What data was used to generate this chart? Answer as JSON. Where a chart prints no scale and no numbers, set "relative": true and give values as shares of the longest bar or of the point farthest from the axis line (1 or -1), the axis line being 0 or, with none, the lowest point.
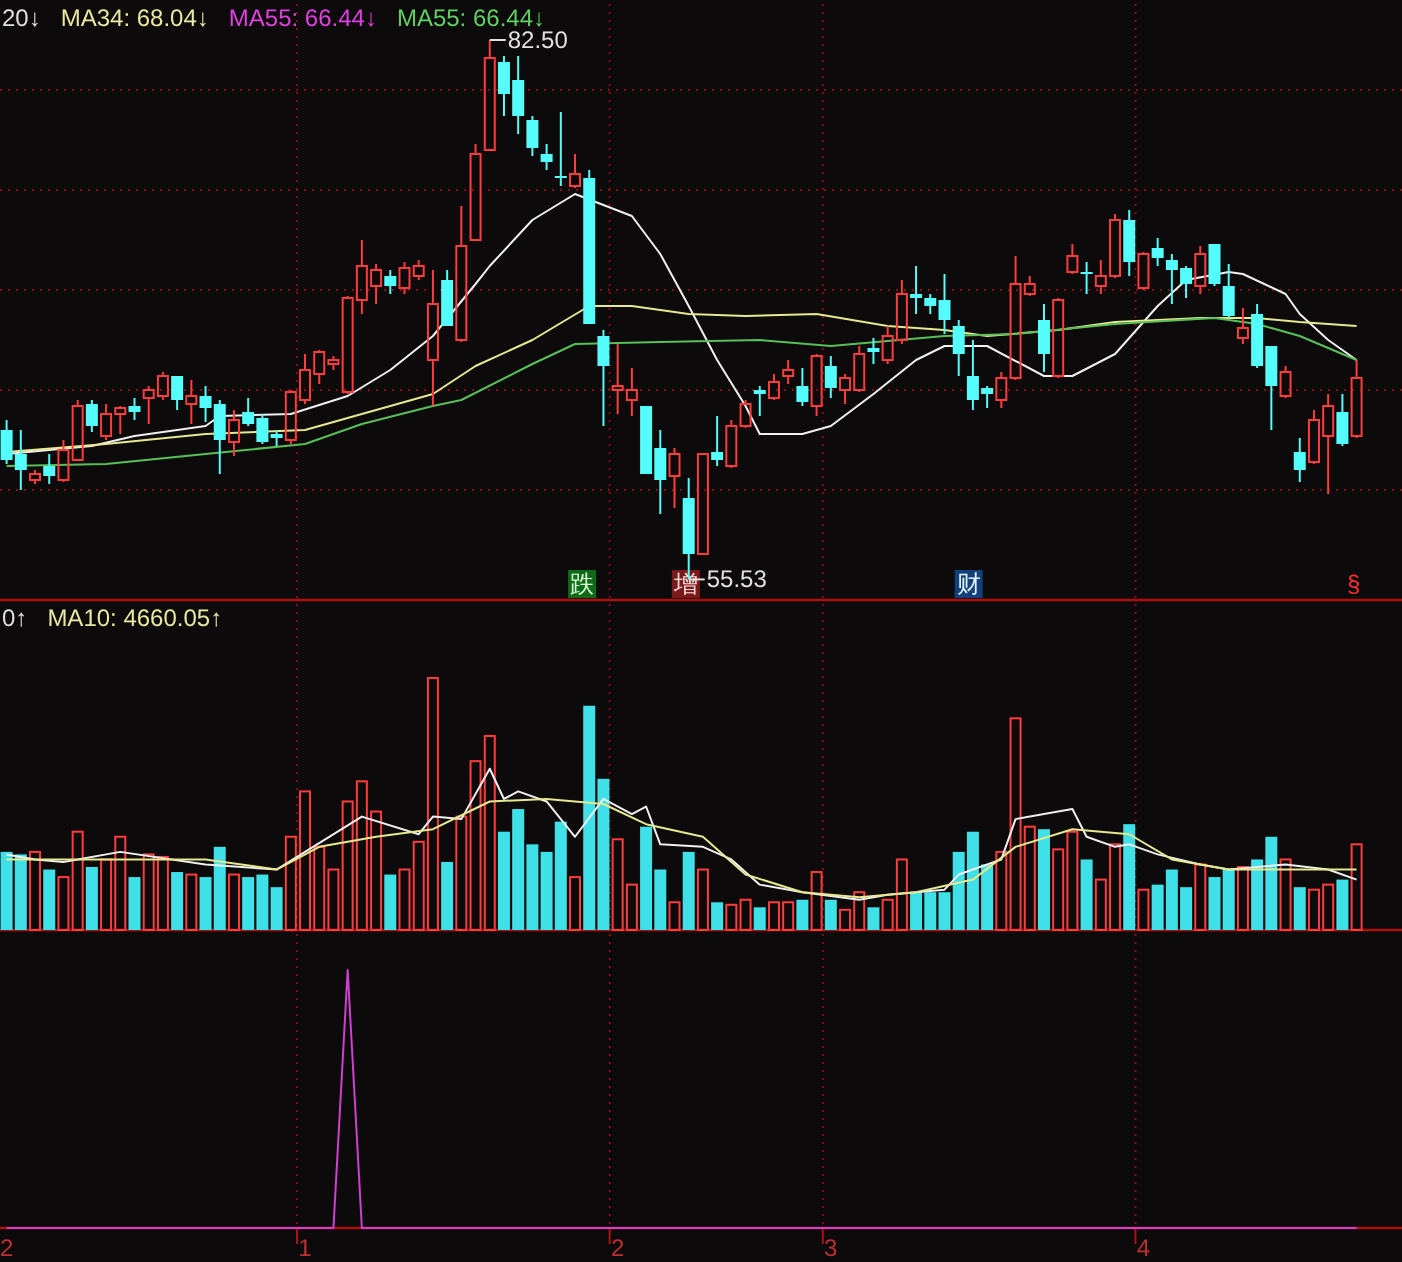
{
  "chart_data": [
    {
      "type": "candlestick",
      "tick_labels": false,
      "grid": true,
      "ylim": [
        54.5,
        84.5
      ],
      "categories": [
        "2",
        null,
        null,
        null,
        null,
        null,
        null,
        null,
        null,
        null,
        null,
        null,
        null,
        null,
        null,
        null,
        null,
        null,
        null,
        null,
        null,
        "1",
        null,
        null,
        null,
        null,
        null,
        null,
        null,
        null,
        null,
        null,
        null,
        null,
        null,
        null,
        null,
        null,
        null,
        null,
        null,
        null,
        null,
        "2",
        null,
        null,
        null,
        null,
        null,
        null,
        null,
        null,
        null,
        null,
        null,
        null,
        null,
        null,
        "3",
        null,
        null,
        null,
        null,
        null,
        null,
        null,
        null,
        null,
        null,
        null,
        null,
        null,
        null,
        null,
        null,
        null,
        null,
        null,
        null,
        null,
        "4",
        null,
        null,
        null,
        null,
        null,
        null,
        null,
        null,
        null,
        null,
        null,
        null,
        null,
        null,
        null
      ],
      "yticks": [
        {
          "value": 60,
          "label": null
        },
        {
          "value": 65,
          "label": null
        },
        {
          "value": 70,
          "label": null
        },
        {
          "value": 75,
          "label": null
        },
        {
          "value": 80,
          "label": null
        }
      ],
      "annotations": [
        "20↓",
        "MA34: 68.04↓",
        "MA55: 66.44↓",
        "MA55: 66.44↓",
        "82.50",
        "55.53",
        "跌",
        "增",
        "财",
        "§"
      ],
      "series": [
        {
          "colors": [
            "#54fcfc",
            "#54fcfc",
            "#ff3c3c",
            "#54fcfc",
            "#ff3c3c",
            "#ff3c3c",
            "#54fcfc",
            "#ff3c3c",
            "#ff3c3c",
            "#54fcfc",
            "#ff3c3c",
            "#ff3c3c",
            "#54fcfc",
            "#ff3c3c",
            "#54fcfc",
            "#54fcfc",
            "#ff3c3c",
            "#54fcfc",
            "#54fcfc",
            "#54fcfc",
            "#ff3c3c",
            "#ff3c3c",
            "#ff3c3c",
            "#ff3c3c",
            "#ff3c3c",
            "#ff3c3c",
            "#ff3c3c",
            "#54fcfc",
            "#ff3c3c",
            "#ff3c3c",
            "#ff3c3c",
            "#54fcfc",
            "#ff3c3c",
            "#ff3c3c",
            "#ff3c3c",
            "#54fcfc",
            "#54fcfc",
            "#54fcfc",
            "#54fcfc",
            "#54fcfc",
            "#ff3c3c",
            "#54fcfc",
            "#54fcfc",
            "#ff3c3c",
            "#ff3c3c",
            "#54fcfc",
            "#54fcfc",
            "#ff3c3c",
            "#54fcfc",
            "#ff3c3c",
            "#54fcfc",
            "#ff3c3c",
            "#ff3c3c",
            "#54fcfc",
            "#ff3c3c",
            "#ff3c3c",
            "#54fcfc",
            "#ff3c3c",
            "#54fcfc",
            "#ff3c3c",
            "#ff3c3c",
            "#54fcfc",
            "#ff3c3c",
            "#ff3c3c",
            "#54fcfc",
            "#54fcfc",
            "#54fcfc",
            "#54fcfc",
            "#54fcfc",
            "#54fcfc",
            "#ff3c3c",
            "#ff3c3c",
            "#ff3c3c",
            "#54fcfc",
            "#ff3c3c",
            "#ff3c3c",
            "#54fcfc",
            "#ff3c3c",
            "#ff3c3c",
            "#54fcfc",
            "#ff3c3c",
            "#54fcfc",
            "#54fcfc",
            "#54fcfc",
            "#ff3c3c",
            "#54fcfc",
            "#54fcfc",
            "#ff3c3c",
            "#54fcfc",
            "#54fcfc",
            "#ff3c3c",
            "#54fcfc",
            "#ff3c3c",
            "#ff3c3c",
            "#54fcfc",
            "#ff3c3c"
          ],
          "ohlc": [
            [
              63.0,
              63.5,
              61.3,
              61.5
            ],
            [
              61.8,
              63.0,
              60.0,
              61.0
            ],
            [
              60.5,
              61.0,
              60.3,
              60.8
            ],
            [
              61.2,
              61.8,
              60.3,
              60.7
            ],
            [
              60.5,
              62.5,
              60.4,
              62.0
            ],
            [
              61.5,
              64.5,
              61.5,
              64.2
            ],
            [
              64.3,
              64.5,
              62.9,
              63.2
            ],
            [
              62.7,
              64.3,
              62.5,
              63.8
            ],
            [
              63.8,
              64.2,
              62.8,
              64.1
            ],
            [
              64.2,
              64.6,
              63.5,
              63.9
            ],
            [
              64.6,
              65.2,
              63.3,
              65.0
            ],
            [
              64.7,
              65.9,
              64.5,
              65.7
            ],
            [
              65.7,
              65.7,
              64.0,
              64.5
            ],
            [
              64.3,
              65.5,
              63.3,
              64.7
            ],
            [
              64.7,
              65.2,
              63.4,
              64.1
            ],
            [
              64.3,
              64.5,
              60.8,
              62.5
            ],
            [
              62.4,
              64.0,
              61.7,
              63.5
            ],
            [
              63.9,
              64.6,
              63.2,
              63.3
            ],
            [
              63.6,
              63.8,
              62.3,
              62.4
            ],
            [
              62.8,
              63.0,
              62.2,
              62.6
            ],
            [
              62.5,
              65.0,
              62.3,
              64.9
            ],
            [
              64.5,
              66.8,
              64.3,
              66.0
            ],
            [
              65.8,
              67.0,
              65.3,
              66.9
            ],
            [
              66.3,
              66.7,
              66.0,
              66.5
            ],
            [
              64.9,
              69.7,
              64.8,
              69.6
            ],
            [
              69.5,
              72.5,
              68.8,
              71.2
            ],
            [
              70.2,
              71.3,
              69.3,
              71.0
            ],
            [
              70.7,
              71.0,
              69.8,
              70.2
            ],
            [
              70.1,
              71.4,
              69.8,
              71.1
            ],
            [
              70.7,
              71.5,
              70.5,
              71.2
            ],
            [
              66.5,
              71.0,
              64.2,
              69.3
            ],
            [
              70.5,
              71.0,
              68.2,
              68.2
            ],
            [
              67.5,
              74.2,
              67.4,
              72.2
            ],
            [
              72.5,
              77.3,
              72.5,
              76.8
            ],
            [
              77.0,
              82.5,
              77.0,
              81.6
            ],
            [
              81.4,
              81.7,
              78.7,
              79.8
            ],
            [
              80.5,
              81.7,
              77.8,
              78.7
            ],
            [
              78.5,
              78.7,
              76.7,
              77.1
            ],
            [
              76.8,
              77.3,
              76.0,
              76.4
            ],
            [
              75.7,
              78.9,
              75.2,
              75.6
            ],
            [
              75.2,
              76.8,
              75.1,
              75.8
            ],
            [
              75.6,
              76.0,
              68.3,
              68.3
            ],
            [
              67.7,
              68.0,
              63.2,
              66.2
            ],
            [
              65.0,
              67.3,
              63.8,
              65.2
            ],
            [
              64.5,
              66.1,
              63.7,
              65.0
            ],
            [
              64.2,
              64.2,
              60.8,
              60.8
            ],
            [
              62.1,
              63.0,
              58.8,
              60.5
            ],
            [
              60.7,
              62.1,
              59.1,
              61.8
            ],
            [
              59.6,
              60.6,
              55.53,
              56.8
            ],
            [
              56.8,
              61.8,
              56.8,
              61.8
            ],
            [
              61.9,
              63.7,
              61.2,
              61.5
            ],
            [
              61.2,
              63.5,
              61.1,
              63.2
            ],
            [
              63.2,
              64.5,
              63.1,
              64.3
            ],
            [
              65.0,
              65.2,
              63.7,
              64.8
            ],
            [
              64.6,
              65.8,
              64.5,
              65.4
            ],
            [
              65.7,
              66.5,
              65.3,
              66.0
            ],
            [
              65.2,
              66.1,
              64.2,
              64.4
            ],
            [
              64.2,
              66.8,
              63.7,
              66.7
            ],
            [
              66.2,
              66.7,
              64.6,
              65.1
            ],
            [
              65.0,
              65.8,
              64.3,
              65.6
            ],
            [
              65.0,
              67.2,
              64.9,
              66.8
            ],
            [
              67.1,
              67.6,
              66.3,
              66.9
            ],
            [
              66.5,
              68.2,
              66.3,
              67.7
            ],
            [
              67.5,
              70.5,
              67.3,
              69.8
            ],
            [
              69.8,
              71.2,
              68.8,
              69.6
            ],
            [
              69.6,
              69.8,
              68.8,
              69.2
            ],
            [
              69.5,
              70.8,
              67.8,
              68.5
            ],
            [
              68.2,
              68.5,
              65.7,
              66.8
            ],
            [
              65.7,
              67.5,
              64.0,
              64.5
            ],
            [
              65.1,
              65.2,
              64.1,
              64.8
            ],
            [
              64.5,
              65.9,
              64.1,
              65.6
            ],
            [
              65.6,
              71.7,
              65.5,
              70.3
            ],
            [
              69.8,
              70.7,
              69.7,
              70.3
            ],
            [
              68.5,
              69.3,
              65.9,
              66.8
            ],
            [
              65.7,
              69.6,
              65.6,
              69.5
            ],
            [
              70.9,
              72.3,
              70.8,
              71.7
            ],
            [
              70.9,
              71.4,
              69.8,
              70.8
            ],
            [
              70.2,
              71.5,
              69.8,
              70.7
            ],
            [
              70.7,
              73.8,
              70.6,
              73.5
            ],
            [
              73.5,
              74.0,
              70.7,
              71.4
            ],
            [
              70.1,
              71.9,
              70.0,
              71.8
            ],
            [
              72.1,
              72.6,
              71.2,
              71.6
            ],
            [
              71.5,
              71.8,
              69.3,
              71.0
            ],
            [
              71.1,
              71.2,
              69.6,
              70.3
            ],
            [
              70.2,
              72.2,
              69.8,
              71.8
            ],
            [
              72.3,
              72.3,
              70.2,
              70.3
            ],
            [
              70.2,
              71.3,
              68.6,
              68.7
            ],
            [
              67.6,
              69.1,
              67.3,
              68.1
            ],
            [
              68.8,
              69.3,
              66.1,
              66.2
            ],
            [
              67.2,
              67.2,
              63.0,
              65.2
            ],
            [
              64.7,
              66.2,
              64.6,
              65.9
            ],
            [
              61.9,
              62.6,
              60.4,
              61.0
            ],
            [
              61.4,
              64.0,
              61.3,
              63.5
            ],
            [
              62.7,
              64.8,
              59.8,
              64.2
            ],
            [
              63.9,
              64.8,
              62.2,
              62.3
            ],
            [
              62.7,
              66.5,
              62.6,
              65.6
            ]
          ]
        },
        {
          "type": "line",
          "color": "#f0f0f0",
          "values": [
            61.8,
            null,
            null,
            null,
            null,
            null,
            62.2,
            null,
            null,
            62.7,
            null,
            null,
            null,
            null,
            63.2,
            63.7,
            null,
            null,
            null,
            null,
            63.8,
            null,
            null,
            null,
            64.7,
            null,
            null,
            66.0,
            null,
            null,
            67.7,
            null,
            null,
            70.3,
            71.2,
            null,
            null,
            73.5,
            null,
            null,
            74.8,
            null,
            null,
            null,
            73.7,
            null,
            71.8,
            null,
            69.2,
            null,
            66.5,
            null,
            64.2,
            62.8,
            null,
            null,
            62.8,
            null,
            63.2,
            null,
            null,
            64.8,
            null,
            null,
            66.5,
            null,
            67.2,
            null,
            null,
            67.2,
            null,
            null,
            null,
            65.7,
            null,
            65.7,
            null,
            null,
            66.8,
            null,
            null,
            69.2,
            null,
            70.5,
            null,
            null,
            70.9,
            70.8,
            null,
            null,
            69.8,
            68.8,
            null,
            67.5,
            null,
            66.5
          ]
        },
        {
          "type": "line",
          "color": "#e8e890",
          "values": [
            61.9,
            null,
            null,
            null,
            null,
            null,
            null,
            62.3,
            null,
            null,
            null,
            null,
            null,
            null,
            62.8,
            null,
            null,
            null,
            null,
            null,
            null,
            63.0,
            null,
            null,
            null,
            63.8,
            null,
            null,
            null,
            null,
            64.8,
            null,
            null,
            66.2,
            null,
            null,
            null,
            67.5,
            null,
            null,
            null,
            69.2,
            null,
            null,
            69.2,
            null,
            null,
            null,
            68.8,
            null,
            null,
            null,
            68.7,
            null,
            null,
            null,
            null,
            68.8,
            null,
            null,
            null,
            null,
            68.2,
            null,
            null,
            null,
            68.0,
            null,
            null,
            67.7,
            null,
            null,
            null,
            null,
            68.0,
            null,
            null,
            null,
            68.4,
            null,
            null,
            null,
            null,
            null,
            68.6,
            null,
            null,
            null,
            68.6,
            null,
            null,
            68.4,
            null,
            null,
            null,
            68.2
          ]
        },
        {
          "type": "line",
          "color": "#58c058",
          "values": [
            61.2,
            null,
            null,
            null,
            null,
            null,
            null,
            61.3,
            null,
            null,
            null,
            null,
            null,
            null,
            61.8,
            null,
            null,
            null,
            null,
            null,
            null,
            62.3,
            null,
            null,
            null,
            63.3,
            null,
            null,
            null,
            null,
            64.2,
            null,
            64.5,
            null,
            null,
            null,
            null,
            66.3,
            null,
            null,
            67.3,
            null,
            null,
            null,
            null,
            null,
            67.4,
            null,
            null,
            null,
            null,
            null,
            null,
            67.5,
            null,
            null,
            null,
            null,
            67.2,
            null,
            null,
            null,
            null,
            null,
            null,
            null,
            67.7,
            null,
            null,
            null,
            null,
            67.8,
            null,
            null,
            null,
            null,
            null,
            null,
            68.3,
            null,
            null,
            null,
            null,
            null,
            null,
            68.6,
            null,
            null,
            68.3,
            null,
            null,
            67.7,
            null,
            null,
            null,
            66.5
          ]
        }
      ]
    },
    {
      "type": "bar",
      "relative": true,
      "tick_labels": false,
      "grid": "x",
      "categories": [
        "2",
        null,
        null,
        null,
        null,
        null,
        null,
        null,
        null,
        null,
        null,
        null,
        null,
        null,
        null,
        null,
        null,
        null,
        null,
        null,
        null,
        "1",
        null,
        null,
        null,
        null,
        null,
        null,
        null,
        null,
        null,
        null,
        null,
        null,
        null,
        null,
        null,
        null,
        null,
        null,
        null,
        null,
        null,
        "2",
        null,
        null,
        null,
        null,
        null,
        null,
        null,
        null,
        null,
        null,
        null,
        null,
        null,
        null,
        "3",
        null,
        null,
        null,
        null,
        null,
        null,
        null,
        null,
        null,
        null,
        null,
        null,
        null,
        null,
        null,
        null,
        null,
        null,
        null,
        null,
        null,
        "4",
        null,
        null,
        null,
        null,
        null,
        null,
        null,
        null,
        null,
        null,
        null,
        null,
        null,
        null,
        null
      ],
      "annotations": [
        "0↑",
        "MA10: 4660.05↑"
      ],
      "series": [
        {
          "color": "#ff3c3c",
          "values": [
            null,
            null,
            0.31,
            null,
            0.21,
            0.39,
            null,
            0.28,
            0.37,
            null,
            0.3,
            0.29,
            null,
            0.22,
            null,
            null,
            0.22,
            null,
            null,
            null,
            0.37,
            0.55,
            0.33,
            0.24,
            0.51,
            0.59,
            0.47,
            null,
            0.24,
            0.35,
            1,
            null,
            0.45,
            0.67,
            0.77,
            null,
            null,
            null,
            null,
            null,
            0.21,
            null,
            null,
            0.36,
            0.18,
            null,
            null,
            0.11,
            null,
            0.24,
            null,
            0.1,
            0.12,
            null,
            0.11,
            0.11,
            null,
            0.23,
            null,
            0.08,
            0.15,
            null,
            0.12,
            0.28,
            null,
            null,
            null,
            null,
            null,
            null,
            0.31,
            0.84,
            0.41,
            null,
            0.32,
            0.39,
            null,
            0.2,
            0.34,
            null,
            0.16,
            null,
            null,
            null,
            0.26,
            null,
            null,
            0.25,
            null,
            null,
            0.28,
            null,
            0.16,
            0.18,
            null,
            0.34
          ]
        },
        {
          "color": "#40e0e8",
          "values": [
            0.31,
            0.3,
            null,
            0.24,
            null,
            null,
            0.25,
            null,
            null,
            0.21,
            null,
            null,
            0.23,
            null,
            0.21,
            0.33,
            null,
            0.21,
            0.22,
            0.17,
            null,
            null,
            null,
            null,
            null,
            null,
            null,
            0.22,
            null,
            null,
            null,
            0.27,
            null,
            null,
            null,
            0.39,
            0.48,
            0.34,
            0.31,
            0.43,
            null,
            0.89,
            0.6,
            null,
            null,
            0.41,
            0.24,
            null,
            0.31,
            null,
            0.11,
            null,
            null,
            0.09,
            null,
            null,
            0.12,
            null,
            0.12,
            null,
            null,
            0.09,
            null,
            null,
            0.15,
            0.15,
            0.15,
            0.31,
            0.39,
            0.26,
            null,
            null,
            null,
            0.4,
            null,
            null,
            0.28,
            null,
            null,
            0.42,
            null,
            0.18,
            0.24,
            0.17,
            null,
            0.21,
            0.24,
            null,
            0.28,
            0.37,
            null,
            0.17,
            null,
            null,
            0.2,
            null
          ]
        },
        {
          "type": "line",
          "color": "#f0f0f0",
          "values": [
            0.3,
            null,
            0.28,
            null,
            0.27,
            null,
            null,
            null,
            0.31,
            null,
            null,
            null,
            null,
            null,
            0.26,
            null,
            null,
            null,
            null,
            0.24,
            null,
            0.31,
            null,
            null,
            null,
            0.45,
            null,
            null,
            null,
            0.38,
            0.45,
            null,
            0.44,
            null,
            0.64,
            0.52,
            0.55,
            null,
            0.51,
            null,
            0.37,
            null,
            0.52,
            null,
            0.46,
            0.49,
            0.34,
            null,
            null,
            0.33,
            null,
            0.28,
            null,
            0.18,
            null,
            null,
            0.15,
            null,
            null,
            null,
            0.12,
            null,
            0.14,
            null,
            null,
            null,
            0.16,
            0.22,
            null,
            null,
            0.28,
            0.44,
            null,
            0.46,
            null,
            0.48,
            0.37,
            null,
            0.33,
            0.34,
            null,
            0.3,
            null,
            null,
            0.26,
            null,
            0.24,
            null,
            null,
            null,
            0.26,
            null,
            null,
            0.24,
            null,
            0.2
          ]
        },
        {
          "type": "line",
          "color": "#e8e890",
          "values": [
            0.28,
            null,
            null,
            null,
            null,
            null,
            null,
            0.28,
            null,
            null,
            null,
            null,
            null,
            null,
            0.28,
            null,
            null,
            null,
            null,
            0.24,
            null,
            null,
            0.33,
            null,
            null,
            null,
            0.37,
            null,
            null,
            null,
            0.4,
            null,
            null,
            null,
            0.51,
            null,
            null,
            null,
            0.52,
            null,
            null,
            null,
            0.5,
            null,
            null,
            0.42,
            null,
            null,
            null,
            0.37,
            null,
            null,
            0.22,
            null,
            null,
            null,
            0.15,
            null,
            null,
            null,
            0.13,
            null,
            null,
            null,
            0.15,
            null,
            null,
            null,
            0.2,
            null,
            null,
            0.33,
            null,
            null,
            null,
            0.4,
            null,
            null,
            null,
            0.38,
            null,
            null,
            0.28,
            null,
            null,
            null,
            0.24,
            null,
            null,
            null,
            null,
            0.24,
            null,
            null,
            null,
            0.24
          ]
        }
      ]
    },
    {
      "type": "line",
      "relative": true,
      "tick_labels": "x",
      "grid": "x",
      "categories": [
        "2",
        null,
        null,
        null,
        null,
        null,
        null,
        null,
        null,
        null,
        null,
        null,
        null,
        null,
        null,
        null,
        null,
        null,
        null,
        null,
        null,
        "1",
        null,
        null,
        null,
        null,
        null,
        null,
        null,
        null,
        null,
        null,
        null,
        null,
        null,
        null,
        null,
        null,
        null,
        null,
        null,
        null,
        null,
        "2",
        null,
        null,
        null,
        null,
        null,
        null,
        null,
        null,
        null,
        null,
        null,
        null,
        null,
        null,
        "3",
        null,
        null,
        null,
        null,
        null,
        null,
        null,
        null,
        null,
        null,
        null,
        null,
        null,
        null,
        null,
        null,
        null,
        null,
        null,
        null,
        null,
        "4",
        null,
        null,
        null,
        null,
        null,
        null,
        null,
        null,
        null,
        null,
        null,
        null,
        null,
        null,
        null
      ],
      "series": [
        {
          "color": "#d040d0",
          "values": [
            0,
            0,
            0,
            0,
            0,
            0,
            0,
            0,
            0,
            0,
            0,
            0,
            0,
            0,
            0,
            0,
            0,
            0,
            0,
            0,
            0,
            0,
            0,
            0,
            1,
            0,
            0,
            0,
            0,
            0,
            0,
            0,
            0,
            0,
            0,
            0,
            0,
            0,
            0,
            0,
            0,
            0,
            0,
            0,
            0,
            0,
            0,
            0,
            0,
            0,
            0,
            0,
            0,
            0,
            0,
            0,
            0,
            0,
            0,
            0,
            0,
            0,
            0,
            0,
            0,
            0,
            0,
            0,
            0,
            0,
            0,
            0,
            0,
            0,
            0,
            0,
            0,
            0,
            0,
            0,
            0,
            0,
            0,
            0,
            0,
            0,
            0,
            0,
            0,
            0,
            0,
            0,
            0,
            0,
            0,
            0
          ]
        }
      ]
    }
  ]
}
